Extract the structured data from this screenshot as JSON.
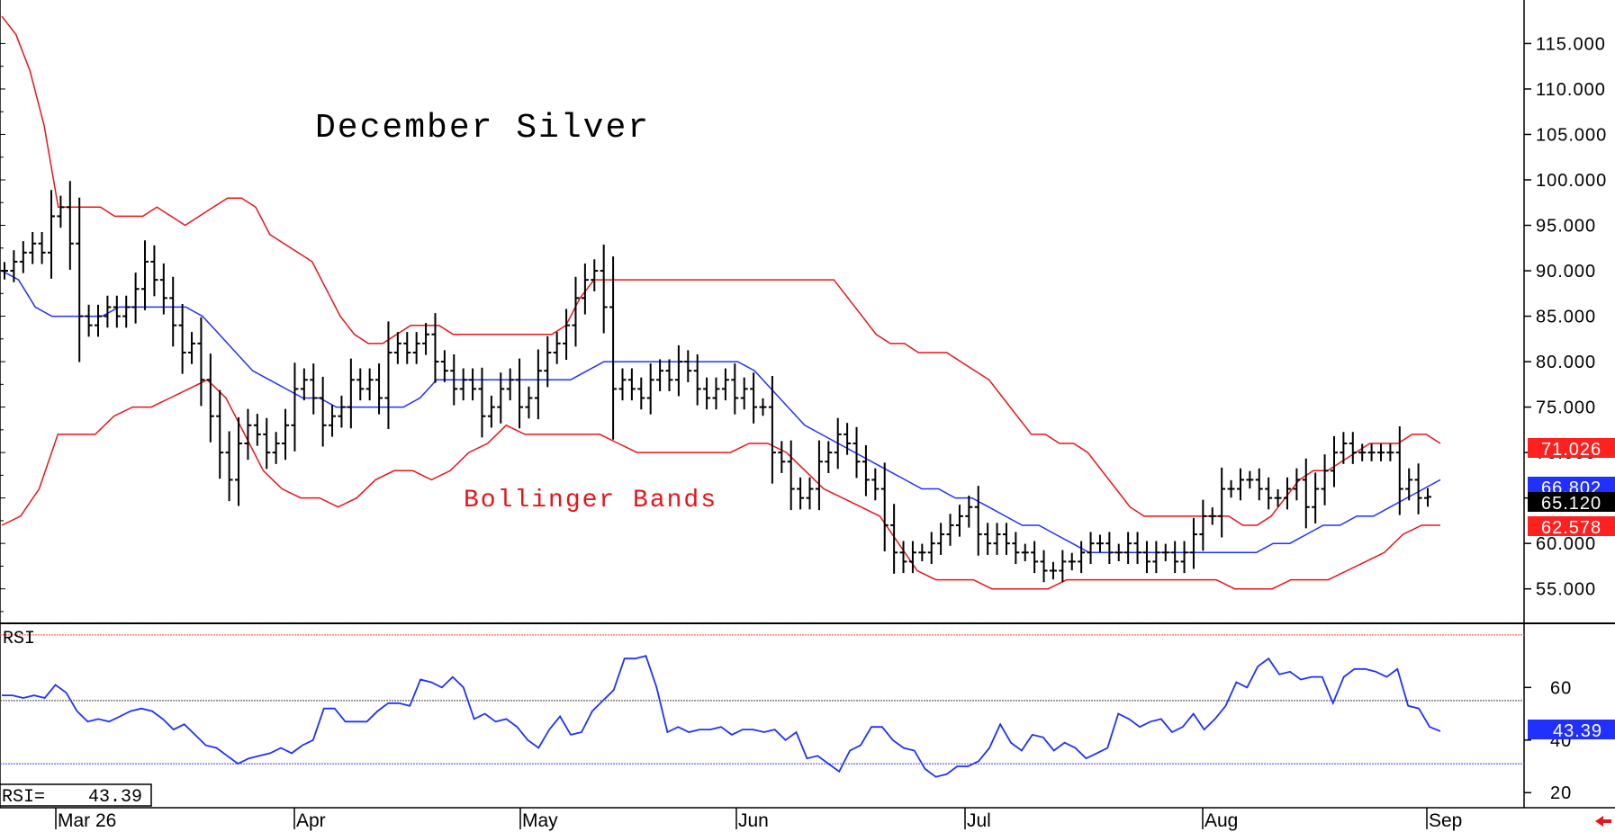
{
  "chart_data": {
    "type": "bar",
    "subtype": "ohlc-with-bollinger-bands-and-rsi",
    "title": "December Silver",
    "annotation": "Bollinger Bands",
    "x_labels": [
      "Mar 26",
      "Apr",
      "May",
      "Jun",
      "Jul",
      "Aug",
      "Sep"
    ],
    "price_axis": {
      "ylim": [
        52,
        119
      ],
      "ticks": [
        "115.000",
        "110.000",
        "105.000",
        "100.000",
        "95.000",
        "90.000",
        "85.000",
        "80.000",
        "75.000",
        "70.000",
        "65.000",
        "60.000",
        "55.000"
      ]
    },
    "rsi_axis": {
      "ylim": [
        17,
        82
      ],
      "ticks": [
        "60",
        "40",
        "20"
      ],
      "overbought": 80,
      "oversold": 31,
      "mid": 55,
      "label": "RSI",
      "readout_label": "RSI=",
      "readout_value": "43.39"
    },
    "last_values": {
      "upper_band": "71.026",
      "middle_band": "66.802",
      "close": "65.120",
      "lower_band": "62.578",
      "rsi": "43.39"
    },
    "close": [
      90,
      91,
      92,
      93,
      92,
      96,
      97,
      93,
      85,
      84,
      85,
      86,
      85,
      86,
      88,
      91,
      89,
      87,
      84,
      81,
      82,
      78,
      74,
      70,
      67,
      71,
      73,
      72,
      70,
      71,
      73,
      77,
      78,
      76,
      73,
      74,
      75,
      78,
      77,
      78,
      76,
      81,
      82,
      81,
      82,
      83,
      80,
      79,
      77,
      78,
      77,
      74,
      75,
      77,
      78,
      75,
      76,
      79,
      81,
      82,
      84,
      87,
      89,
      90,
      86,
      77,
      78,
      77,
      76,
      78,
      79,
      78,
      80,
      79,
      77,
      76,
      77,
      78,
      76,
      77,
      75,
      75,
      70,
      69,
      66,
      65,
      66,
      69,
      70,
      72,
      71,
      69,
      67,
      66,
      62,
      59,
      58,
      59,
      59,
      60,
      61,
      62,
      63,
      64,
      61,
      60,
      61,
      60,
      59,
      59,
      58,
      57,
      57,
      58,
      58,
      59,
      60,
      60,
      59,
      59,
      60,
      59,
      58,
      59,
      59,
      58,
      59,
      61,
      63,
      63,
      66,
      66,
      67,
      67,
      66,
      65,
      65,
      66,
      67,
      64,
      66,
      68,
      70,
      71,
      70,
      70,
      70,
      70,
      70,
      66,
      67,
      65,
      65.12
    ],
    "upper_band": [
      118,
      116,
      112,
      106,
      97,
      97,
      97,
      97,
      96,
      96,
      96,
      97,
      96,
      95,
      96,
      97,
      98,
      98,
      97,
      94,
      93,
      92,
      91,
      88,
      85,
      83,
      82,
      82,
      83,
      84,
      84,
      84,
      83,
      83,
      83,
      83,
      83,
      83,
      83,
      83,
      84,
      87,
      89,
      89,
      89,
      89,
      89,
      89,
      89,
      89,
      89,
      89,
      89,
      89,
      89,
      89,
      89,
      89,
      89,
      89,
      87,
      85,
      83,
      82,
      82,
      81,
      81,
      81,
      80,
      79,
      78,
      76,
      74,
      72,
      72,
      71,
      71,
      70,
      68,
      66,
      64,
      63,
      63,
      63,
      63,
      63,
      63,
      63,
      62,
      62,
      63,
      65,
      67,
      68,
      68,
      69,
      70,
      71,
      71,
      71,
      72,
      72,
      71
    ],
    "middle_band": [
      90,
      89,
      86,
      85,
      85,
      85,
      85,
      86,
      86,
      86,
      86,
      86,
      85,
      83,
      81,
      79,
      78,
      77,
      76,
      76,
      75,
      75,
      75,
      75,
      75,
      76,
      78,
      78,
      78,
      78,
      78,
      78,
      78,
      78,
      78,
      79,
      80,
      80,
      80,
      80,
      80,
      80,
      80,
      80,
      80,
      79,
      77,
      75,
      73,
      72,
      71,
      70,
      69,
      68,
      67,
      66,
      66,
      65,
      65,
      64,
      63,
      62,
      62,
      61,
      60,
      59,
      59,
      59,
      59,
      59,
      59,
      59,
      59,
      59,
      59,
      59,
      60,
      60,
      61,
      62,
      62,
      63,
      63,
      64,
      65,
      66,
      67
    ],
    "lower_band": [
      62,
      63,
      66,
      72,
      72,
      72,
      74,
      75,
      75,
      76,
      77,
      78,
      76,
      72,
      68,
      66,
      65,
      65,
      64,
      65,
      67,
      68,
      68,
      67,
      68,
      70,
      71,
      73,
      72,
      72,
      72,
      72,
      72,
      71,
      70,
      70,
      70,
      70,
      70,
      70,
      71,
      71,
      70,
      68,
      66,
      65,
      64,
      63,
      60,
      57,
      56,
      56,
      56,
      55,
      55,
      55,
      55,
      56,
      56,
      56,
      56,
      56,
      56,
      56,
      56,
      56,
      55,
      55,
      55,
      56,
      56,
      56,
      57,
      58,
      59,
      61,
      62,
      62
    ],
    "rsi": [
      57,
      57,
      56,
      57,
      56,
      61,
      58,
      51,
      47,
      48,
      47,
      49,
      51,
      52,
      51,
      48,
      44,
      46,
      42,
      38,
      37,
      34,
      31,
      33,
      34,
      35,
      37,
      35,
      38,
      40,
      52,
      52,
      47,
      47,
      47,
      51,
      54,
      54,
      53,
      63,
      62,
      60,
      64,
      60,
      48,
      50,
      47,
      48,
      45,
      40,
      37,
      44,
      49,
      42,
      43,
      51,
      55,
      59,
      71,
      71,
      72,
      60,
      43,
      45,
      43,
      44,
      44,
      45,
      42,
      44,
      44,
      43,
      44,
      40,
      43,
      33,
      34,
      31,
      28,
      36,
      38,
      45,
      45,
      40,
      37,
      36,
      29,
      26,
      27,
      30,
      30,
      32,
      37,
      46,
      39,
      36,
      42,
      41,
      36,
      39,
      37,
      33,
      35,
      37,
      50,
      48,
      45,
      47,
      48,
      43,
      45,
      50,
      44,
      48,
      53,
      62,
      60,
      68,
      71,
      65,
      66,
      63,
      64,
      64,
      54,
      64,
      67,
      67,
      66,
      64,
      67,
      53,
      52,
      45,
      43.39
    ]
  }
}
